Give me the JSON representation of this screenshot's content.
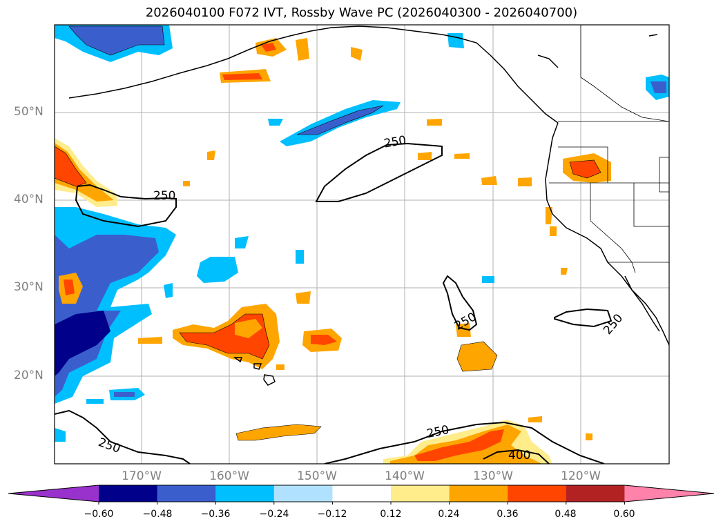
{
  "title": "2026040100 F072 IVT, Rossby Wave PC (2026040300 - 2026040700)",
  "latitude_labels": [
    "50°N",
    "40°N",
    "30°N",
    "20°N"
  ],
  "longitude_labels": [
    "170°W",
    "160°W",
    "150°W",
    "140°W",
    "130°W",
    "120°W"
  ],
  "contour_labels": [
    "250",
    "250",
    "250",
    "250",
    "250",
    "250",
    "400"
  ],
  "colorbar": {
    "tick_labels": [
      "−0.60",
      "−0.48",
      "−0.36",
      "−0.24",
      "−0.12",
      "0.12",
      "0.24",
      "0.36",
      "0.48",
      "0.60"
    ],
    "colors": [
      "#9932cc",
      "#00008b",
      "#3a5fcd",
      "#00bfff",
      "#b0e2ff",
      "#ffffff",
      "#ffec8b",
      "#ffa500",
      "#ff4500",
      "#b22222",
      "#ff82ab"
    ]
  },
  "colors": {
    "land_outline": "#000000",
    "grid": "#b0b0b0",
    "contour": "#000000"
  }
}
